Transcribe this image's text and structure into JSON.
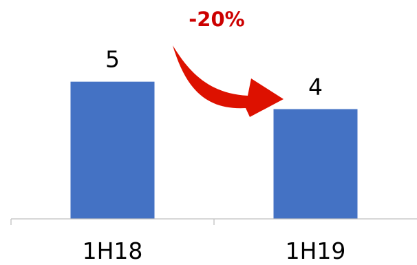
{
  "chart_data": {
    "type": "bar",
    "categories": [
      "1H18",
      "1H19"
    ],
    "values": [
      5,
      4
    ],
    "data_labels": [
      "5",
      "4"
    ],
    "ylim": [
      0,
      7.5
    ],
    "grid": false,
    "legend": "none",
    "annotation": {
      "text": "-20%",
      "icon": "curved-arrow-down-right-icon",
      "from": "1H18",
      "to": "1H19"
    }
  },
  "colors": {
    "bar": "#4472C4",
    "axis": "#BFBFBF",
    "annotation": "#CC0000",
    "arrow": "#DD1100"
  }
}
